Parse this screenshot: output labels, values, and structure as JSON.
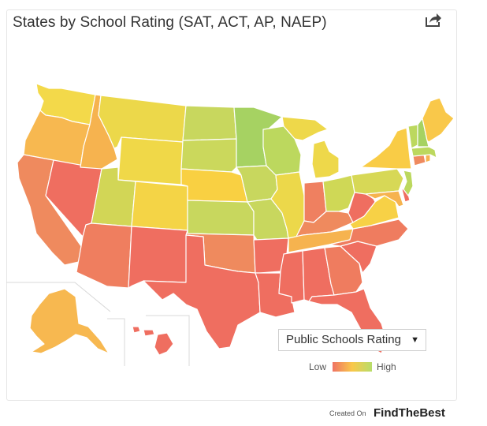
{
  "header": {
    "title": "States by School Rating (SAT, ACT, AP, NAEP)",
    "share_icon": "share-icon"
  },
  "colors": {
    "low": "#ef7364",
    "mid": "#f9c84a",
    "high": "#b7dd6a",
    "border": "#ffffff"
  },
  "controls": {
    "metric_select": "Public Schools Rating",
    "caret": "▼"
  },
  "legend": {
    "low_label": "Low",
    "high_label": "High"
  },
  "footer": {
    "created_on": "Created On",
    "brand": "FindTheBest"
  },
  "states": [
    {
      "id": "WA",
      "color": "#f3d94a"
    },
    {
      "id": "OR",
      "color": "#f7b850"
    },
    {
      "id": "CA",
      "color": "#ef8a5e"
    },
    {
      "id": "NV",
      "color": "#ef6e60"
    },
    {
      "id": "ID",
      "color": "#f6b34f"
    },
    {
      "id": "MT",
      "color": "#ecd84a"
    },
    {
      "id": "WY",
      "color": "#f0d848"
    },
    {
      "id": "UT",
      "color": "#d2d656"
    },
    {
      "id": "AZ",
      "color": "#ef7e5f"
    },
    {
      "id": "CO",
      "color": "#f4d446"
    },
    {
      "id": "NM",
      "color": "#ef6e60"
    },
    {
      "id": "ND",
      "color": "#c8d75e"
    },
    {
      "id": "SD",
      "color": "#cbd85c"
    },
    {
      "id": "NE",
      "color": "#f9d042"
    },
    {
      "id": "KS",
      "color": "#c8d75e"
    },
    {
      "id": "OK",
      "color": "#ef8a5e"
    },
    {
      "id": "TX",
      "color": "#ef6e60"
    },
    {
      "id": "MN",
      "color": "#a6d262"
    },
    {
      "id": "IA",
      "color": "#c8d75e"
    },
    {
      "id": "MO",
      "color": "#c8d75e"
    },
    {
      "id": "AR",
      "color": "#ef6e60"
    },
    {
      "id": "LA",
      "color": "#ef6e60"
    },
    {
      "id": "WI",
      "color": "#bcd85e"
    },
    {
      "id": "IL",
      "color": "#ecd84a"
    },
    {
      "id": "MI",
      "color": "#eed84a"
    },
    {
      "id": "IN",
      "color": "#ef8060"
    },
    {
      "id": "OH",
      "color": "#cfd856"
    },
    {
      "id": "KY",
      "color": "#ef8a5e"
    },
    {
      "id": "TN",
      "color": "#f6b34f"
    },
    {
      "id": "MS",
      "color": "#ef6e60"
    },
    {
      "id": "AL",
      "color": "#ef6e60"
    },
    {
      "id": "GA",
      "color": "#ef7c5f"
    },
    {
      "id": "FL",
      "color": "#ef6e60"
    },
    {
      "id": "SC",
      "color": "#ef6e60"
    },
    {
      "id": "NC",
      "color": "#ef7c5f"
    },
    {
      "id": "VA",
      "color": "#f7d146"
    },
    {
      "id": "WV",
      "color": "#ef6e60"
    },
    {
      "id": "PA",
      "color": "#d7d856"
    },
    {
      "id": "NY",
      "color": "#f9cc46"
    },
    {
      "id": "MD",
      "color": "#f6b34f"
    },
    {
      "id": "DE",
      "color": "#ef6e60"
    },
    {
      "id": "NJ",
      "color": "#bcd85e"
    },
    {
      "id": "CT",
      "color": "#ef8a5e"
    },
    {
      "id": "RI",
      "color": "#f6b34f"
    },
    {
      "id": "MA",
      "color": "#bcd85e"
    },
    {
      "id": "VT",
      "color": "#bcd85e"
    },
    {
      "id": "NH",
      "color": "#a6d262"
    },
    {
      "id": "ME",
      "color": "#f9c84a"
    },
    {
      "id": "AK",
      "color": "#f7b850"
    },
    {
      "id": "HI",
      "color": "#ef6e60"
    }
  ]
}
